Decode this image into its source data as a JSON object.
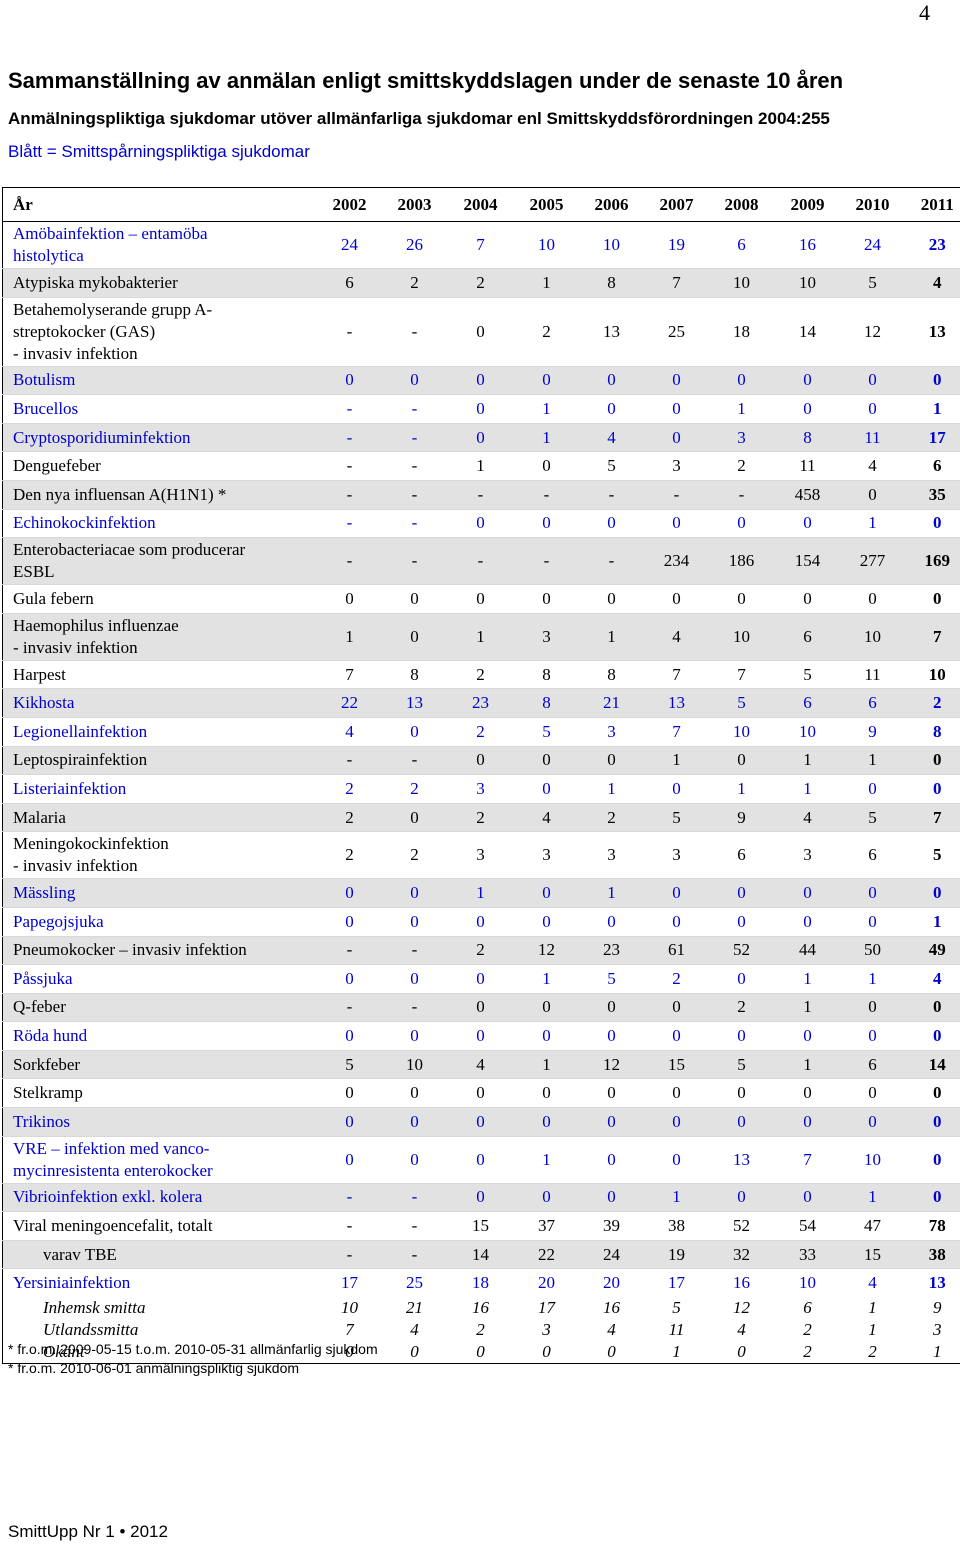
{
  "page_number": "4",
  "title": "Sammanställning av anmälan enligt smittskyddslagen under de senaste 10 åren",
  "subtitle": "Anmälningspliktiga sjukdomar utöver allmänfarliga sjukdomar enl Smittskyddsförordningen 2004:255",
  "legend": "Blått = Smittspårningspliktiga sjukdomar",
  "table": {
    "header_label": "År",
    "years": [
      "2002",
      "2003",
      "2004",
      "2005",
      "2006",
      "2007",
      "2008",
      "2009",
      "2010",
      "2011"
    ],
    "rows": [
      {
        "name": "Amöbainfektion – entamöba\nhistolytica",
        "values": [
          "24",
          "26",
          "7",
          "10",
          "10",
          "19",
          "6",
          "16",
          "24",
          "23"
        ],
        "blue": true,
        "shaded": false,
        "lines": 2
      },
      {
        "name": "Atypiska mykobakterier",
        "values": [
          "6",
          "2",
          "2",
          "1",
          "8",
          "7",
          "10",
          "10",
          "5",
          "4"
        ],
        "blue": false,
        "shaded": true,
        "lines": 1
      },
      {
        "name": "Betahemolyserande grupp A-\nstreptokocker (GAS)\n - invasiv infektion",
        "values": [
          "-",
          "-",
          "0",
          "2",
          "13",
          "25",
          "18",
          "14",
          "12",
          "13"
        ],
        "blue": false,
        "shaded": false,
        "lines": 3
      },
      {
        "name": "Botulism",
        "values": [
          "0",
          "0",
          "0",
          "0",
          "0",
          "0",
          "0",
          "0",
          "0",
          "0"
        ],
        "blue": true,
        "shaded": true,
        "lines": 1
      },
      {
        "name": "Brucellos",
        "values": [
          "-",
          "-",
          "0",
          "1",
          "0",
          "0",
          "1",
          "0",
          "0",
          "1"
        ],
        "blue": true,
        "shaded": false,
        "lines": 1
      },
      {
        "name": "Cryptosporidiuminfektion",
        "values": [
          "-",
          "-",
          "0",
          "1",
          "4",
          "0",
          "3",
          "8",
          "11",
          "17"
        ],
        "blue": true,
        "shaded": true,
        "lines": 1
      },
      {
        "name": "Denguefeber",
        "values": [
          "-",
          "-",
          "1",
          "0",
          "5",
          "3",
          "2",
          "11",
          "4",
          "6"
        ],
        "blue": false,
        "shaded": false,
        "lines": 1
      },
      {
        "name": "Den nya influensan A(H1N1) *",
        "values": [
          "-",
          "-",
          "-",
          "-",
          "-",
          "-",
          "-",
          "458",
          "0",
          "35"
        ],
        "blue": false,
        "shaded": true,
        "lines": 1
      },
      {
        "name": "Echinokockinfektion",
        "values": [
          "-",
          "-",
          "0",
          "0",
          "0",
          "0",
          "0",
          "0",
          "1",
          "0"
        ],
        "blue": true,
        "shaded": false,
        "lines": 1
      },
      {
        "name": "Enterobacteriacae som producerar\nESBL",
        "values": [
          "-",
          "-",
          "-",
          "-",
          "-",
          "234",
          "186",
          "154",
          "277",
          "169"
        ],
        "blue": false,
        "shaded": true,
        "lines": 2
      },
      {
        "name": "Gula febern",
        "values": [
          "0",
          "0",
          "0",
          "0",
          "0",
          "0",
          "0",
          "0",
          "0",
          "0"
        ],
        "blue": false,
        "shaded": false,
        "lines": 1
      },
      {
        "name": "Haemophilus influenzae\n - invasiv infektion",
        "values": [
          "1",
          "0",
          "1",
          "3",
          "1",
          "4",
          "10",
          "6",
          "10",
          "7"
        ],
        "blue": false,
        "shaded": true,
        "lines": 2
      },
      {
        "name": "Harpest",
        "values": [
          "7",
          "8",
          "2",
          "8",
          "8",
          "7",
          "7",
          "5",
          "11",
          "10"
        ],
        "blue": false,
        "shaded": false,
        "lines": 1
      },
      {
        "name": "Kikhosta",
        "values": [
          "22",
          "13",
          "23",
          "8",
          "21",
          "13",
          "5",
          "6",
          "6",
          "2"
        ],
        "blue": true,
        "shaded": true,
        "lines": 1
      },
      {
        "name": "Legionellainfektion",
        "values": [
          "4",
          "0",
          "2",
          "5",
          "3",
          "7",
          "10",
          "10",
          "9",
          "8"
        ],
        "blue": true,
        "shaded": false,
        "lines": 1
      },
      {
        "name": "Leptospirainfektion",
        "values": [
          "-",
          "-",
          "0",
          "0",
          "0",
          "1",
          "0",
          "1",
          "1",
          "0"
        ],
        "blue": false,
        "shaded": true,
        "lines": 1
      },
      {
        "name": "Listeriainfektion",
        "values": [
          "2",
          "2",
          "3",
          "0",
          "1",
          "0",
          "1",
          "1",
          "0",
          "0"
        ],
        "blue": true,
        "shaded": false,
        "lines": 1
      },
      {
        "name": "Malaria",
        "values": [
          "2",
          "0",
          "2",
          "4",
          "2",
          "5",
          "9",
          "4",
          "5",
          "7"
        ],
        "blue": false,
        "shaded": true,
        "lines": 1
      },
      {
        "name": "Meningokockinfektion\n - invasiv infektion",
        "values": [
          "2",
          "2",
          "3",
          "3",
          "3",
          "3",
          "6",
          "3",
          "6",
          "5"
        ],
        "blue": false,
        "shaded": false,
        "lines": 2
      },
      {
        "name": "Mässling",
        "values": [
          "0",
          "0",
          "1",
          "0",
          "1",
          "0",
          "0",
          "0",
          "0",
          "0"
        ],
        "blue": true,
        "shaded": true,
        "lines": 1
      },
      {
        "name": "Papegojsjuka",
        "values": [
          "0",
          "0",
          "0",
          "0",
          "0",
          "0",
          "0",
          "0",
          "0",
          "1"
        ],
        "blue": true,
        "shaded": false,
        "lines": 1
      },
      {
        "name": "Pneumokocker – invasiv infektion",
        "values": [
          "-",
          "-",
          "2",
          "12",
          "23",
          "61",
          "52",
          "44",
          "50",
          "49"
        ],
        "blue": false,
        "shaded": true,
        "lines": 1
      },
      {
        "name": "Påssjuka",
        "values": [
          "0",
          "0",
          "0",
          "1",
          "5",
          "2",
          "0",
          "1",
          "1",
          "4"
        ],
        "blue": true,
        "shaded": false,
        "lines": 1
      },
      {
        "name": "Q-feber",
        "values": [
          "-",
          "-",
          "0",
          "0",
          "0",
          "0",
          "2",
          "1",
          "0",
          "0"
        ],
        "blue": false,
        "shaded": true,
        "lines": 1
      },
      {
        "name": "Röda hund",
        "values": [
          "0",
          "0",
          "0",
          "0",
          "0",
          "0",
          "0",
          "0",
          "0",
          "0"
        ],
        "blue": true,
        "shaded": false,
        "lines": 1
      },
      {
        "name": "Sorkfeber",
        "values": [
          "5",
          "10",
          "4",
          "1",
          "12",
          "15",
          "5",
          "1",
          "6",
          "14"
        ],
        "blue": false,
        "shaded": true,
        "lines": 1
      },
      {
        "name": "Stelkramp",
        "values": [
          "0",
          "0",
          "0",
          "0",
          "0",
          "0",
          "0",
          "0",
          "0",
          "0"
        ],
        "blue": false,
        "shaded": false,
        "lines": 1
      },
      {
        "name": "Trikinos",
        "values": [
          "0",
          "0",
          "0",
          "0",
          "0",
          "0",
          "0",
          "0",
          "0",
          "0"
        ],
        "blue": true,
        "shaded": true,
        "lines": 1
      },
      {
        "name": "VRE – infektion med vanco-\nmycinresistenta enterokocker",
        "values": [
          "0",
          "0",
          "0",
          "1",
          "0",
          "0",
          "13",
          "7",
          "10",
          "0"
        ],
        "blue": true,
        "shaded": false,
        "lines": 2
      },
      {
        "name": "Vibrioinfektion  exkl. kolera",
        "values": [
          "-",
          "-",
          "0",
          "0",
          "0",
          "1",
          "0",
          "0",
          "1",
          "0"
        ],
        "blue": true,
        "shaded": true,
        "lines": 1
      },
      {
        "name": "Viral meningoencefalit, totalt",
        "values": [
          "-",
          "-",
          "15",
          "37",
          "39",
          "38",
          "52",
          "54",
          "47",
          "78"
        ],
        "blue": false,
        "shaded": false,
        "lines": 1
      },
      {
        "name": "varav TBE",
        "values": [
          "-",
          "-",
          "14",
          "22",
          "24",
          "19",
          "32",
          "33",
          "15",
          "38"
        ],
        "blue": false,
        "shaded": true,
        "lines": 1,
        "indent": true
      },
      {
        "name": "Yersiniainfektion",
        "values": [
          "17",
          "25",
          "18",
          "20",
          "20",
          "17",
          "16",
          "10",
          "4",
          "13"
        ],
        "blue": true,
        "shaded": false,
        "lines": 1
      }
    ],
    "subrows": [
      {
        "name": "Inhemsk smitta",
        "values": [
          "10",
          "21",
          "16",
          "17",
          "16",
          "5",
          "12",
          "6",
          "1",
          "9"
        ]
      },
      {
        "name": "Utlandssmitta",
        "values": [
          "7",
          "4",
          "2",
          "3",
          "4",
          "11",
          "4",
          "2",
          "1",
          "3"
        ]
      },
      {
        "name": "Okänt",
        "values": [
          "0",
          "0",
          "0",
          "0",
          "0",
          "1",
          "0",
          "2",
          "2",
          "1"
        ]
      }
    ]
  },
  "footnotes": [
    "* fr.o.m. 2009-05-15 t.o.m. 2010-05-31 allmänfarlig sjukdom",
    "* fr.o.m. 2010-06-01 anmälningspliktig sjukdom"
  ],
  "footer": "SmittUpp Nr 1 • 2012"
}
